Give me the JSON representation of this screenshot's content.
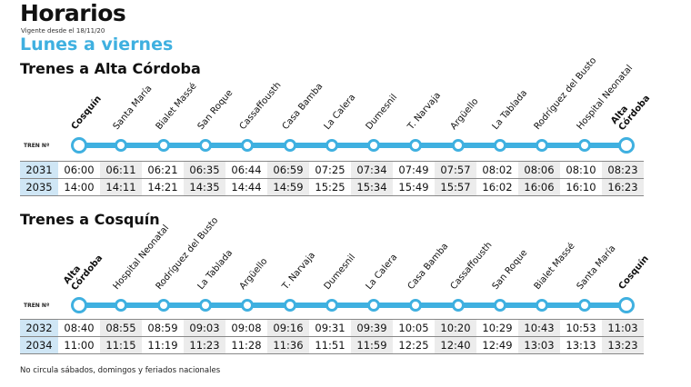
{
  "title": "Horarios",
  "valid_from": "Vigente desde el 18/11/20",
  "days": "Lunes a viernes",
  "train_label": "TREN Nº",
  "colors": {
    "line": "#3fb0e0",
    "train_cell": "#cfe6f5",
    "alt_cell": "#ececec"
  },
  "sections": [
    {
      "title": "Trenes a Alta Córdoba",
      "stations": [
        "Cosquín",
        "Santa María",
        "Bialet Massé",
        "San Roque",
        "Cassaffousth",
        "Casa Bamba",
        "La Calera",
        "Dumesnil",
        "T. Narvaja",
        "Argüello",
        "La Tablada",
        "Rodríguez del Busto",
        "Hospital Neonatal",
        "Alta Córdoba"
      ],
      "rows": [
        {
          "train": "2031",
          "times": [
            "06:00",
            "06:11",
            "06:21",
            "06:35",
            "06:44",
            "06:59",
            "07:25",
            "07:34",
            "07:49",
            "07:57",
            "08:02",
            "08:06",
            "08:10",
            "08:23"
          ]
        },
        {
          "train": "2035",
          "times": [
            "14:00",
            "14:11",
            "14:21",
            "14:35",
            "14:44",
            "14:59",
            "15:25",
            "15:34",
            "15:49",
            "15:57",
            "16:02",
            "16:06",
            "16:10",
            "16:23"
          ]
        }
      ]
    },
    {
      "title": "Trenes a Cosquín",
      "stations": [
        "Alta Córdoba",
        "Hospital Neonatal",
        "Rodríguez del Busto",
        "La Tablada",
        "Argüello",
        "T. Narvaja",
        "Dumesnil",
        "La Calera",
        "Casa Bamba",
        "Cassaffousth",
        "San Roque",
        "Bialet Massé",
        "Santa María",
        "Cosquín"
      ],
      "rows": [
        {
          "train": "2032",
          "times": [
            "08:40",
            "08:55",
            "08:59",
            "09:03",
            "09:08",
            "09:16",
            "09:31",
            "09:39",
            "10:05",
            "10:20",
            "10:29",
            "10:43",
            "10:53",
            "11:03"
          ]
        },
        {
          "train": "2034",
          "times": [
            "11:00",
            "11:15",
            "11:19",
            "11:23",
            "11:28",
            "11:36",
            "11:51",
            "11:59",
            "12:25",
            "12:40",
            "12:49",
            "13:03",
            "13:13",
            "13:23"
          ]
        }
      ]
    }
  ],
  "note": "No circula sábados, domingos y feriados nacionales"
}
